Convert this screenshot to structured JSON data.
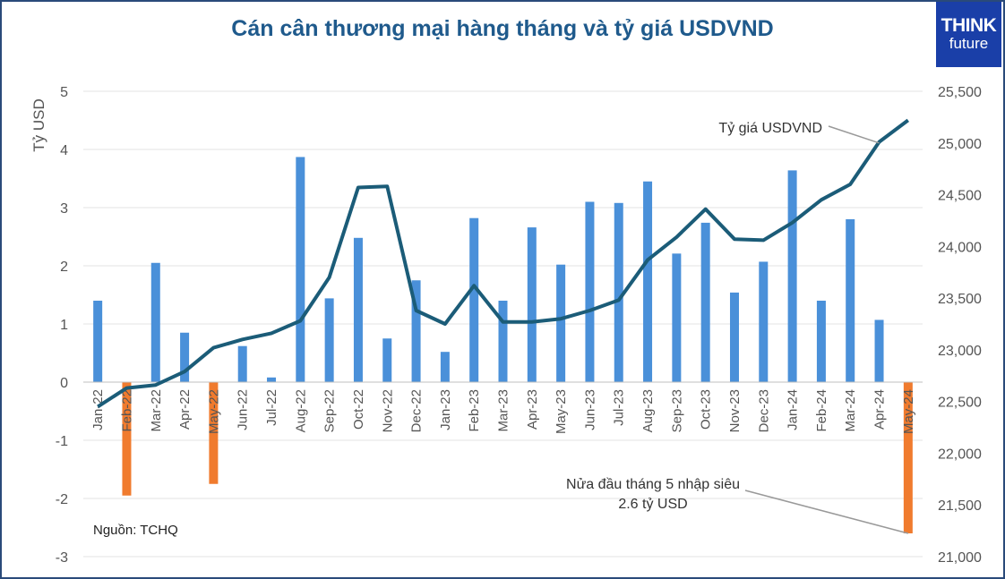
{
  "title": "Cán cân thương mại hàng tháng và tỷ giá USDVND",
  "logo": {
    "line1": "THINK",
    "line2": "future"
  },
  "source_note": "Nguồn: TCHQ",
  "chart_data": {
    "type": "bar",
    "title": "Cán cân thương mại hàng tháng và tỷ giá USDVND",
    "ylabel": "Tỷ USD",
    "ylim": [
      -3,
      5
    ],
    "y2lim": [
      21000,
      25500
    ],
    "yticks": [
      "-3",
      "-2",
      "-1",
      "0",
      "1",
      "2",
      "3",
      "4",
      "5"
    ],
    "y2ticks": [
      "21,000",
      "21,500",
      "22,000",
      "22,500",
      "23,000",
      "23,500",
      "24,000",
      "24,500",
      "25,000",
      "25,500"
    ],
    "grid": true,
    "categories": [
      "Jan-22",
      "Feb-22",
      "Mar-22",
      "Apr-22",
      "May-22",
      "Jun-22",
      "Jul-22",
      "Aug-22",
      "Sep-22",
      "Oct-22",
      "Nov-22",
      "Dec-22",
      "Jan-23",
      "Feb-23",
      "Mar-23",
      "Apr-23",
      "May-23",
      "Jun-23",
      "Jul-23",
      "Aug-23",
      "Sep-23",
      "Oct-23",
      "Nov-23",
      "Dec-23",
      "Jan-24",
      "Feb-24",
      "Mar-24",
      "Apr-24",
      "May-24"
    ],
    "series": [
      {
        "type": "bar",
        "axis": "left",
        "values": [
          1.4,
          -1.95,
          2.05,
          0.85,
          -1.75,
          0.62,
          0.08,
          3.87,
          1.44,
          2.48,
          0.75,
          1.75,
          0.52,
          2.82,
          1.4,
          2.66,
          2.02,
          3.1,
          3.08,
          3.45,
          2.21,
          2.74,
          1.54,
          2.07,
          3.64,
          1.4,
          2.8,
          1.07,
          -2.6
        ],
        "colors": {
          "positive": "#4a90d9",
          "negative": "#f07b2e"
        }
      },
      {
        "name": "Tỷ giá USDVND",
        "type": "line",
        "axis": "right",
        "color": "#1b5c78",
        "values": [
          22450,
          22630,
          22660,
          22790,
          23020,
          23100,
          23160,
          23280,
          23700,
          24570,
          24580,
          23380,
          23250,
          23620,
          23270,
          23270,
          23300,
          23380,
          23480,
          23870,
          24090,
          24360,
          24070,
          24060,
          24230,
          24450,
          24600,
          25010,
          25220
        ]
      }
    ],
    "annotations": [
      {
        "text": "Tỷ giá USDVND",
        "category": "Apr-24",
        "value": 25000
      },
      {
        "lines": [
          "Nửa đầu tháng 5 nhập siêu",
          "2.6 tỷ USD"
        ],
        "category": "May-24",
        "value": -2.6
      }
    ]
  }
}
